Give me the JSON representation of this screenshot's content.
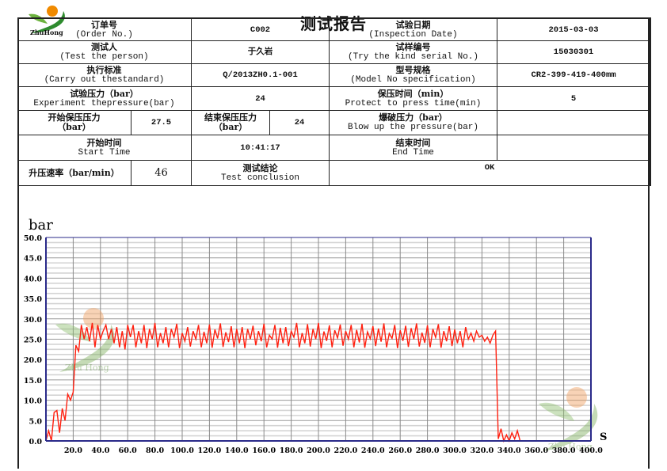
{
  "header": {
    "title": "测试报告",
    "logo_text": "ZhuHong",
    "watermark_text": "Zhu Hong"
  },
  "table": {
    "order_no": {
      "zh": "订单号",
      "en": "(Order No.)",
      "value": "C002"
    },
    "inspection_date": {
      "zh": "试验日期",
      "en": "(Inspection Date)",
      "value": "2015-03-03"
    },
    "test_person": {
      "zh": "测试人",
      "en": "(Test the person)",
      "value": "于久岩"
    },
    "serial_no": {
      "zh": "试样编号",
      "en": "(Try the kind serial No.)",
      "value": "15030301"
    },
    "standard": {
      "zh": "执行标准",
      "en": "(Carry out thestandard)",
      "value": "Q/2013ZH0.1-001"
    },
    "model": {
      "zh": "型号规格",
      "en": "(Model No specification)",
      "value": "CR2-399-419-400mm"
    },
    "test_pressure": {
      "zh": "试验压力（bar）",
      "en": "Experiment thepressure(bar)",
      "value": "24"
    },
    "hold_time": {
      "zh": "保压时间（min）",
      "en": "Protect to press time(min)",
      "value": "5"
    },
    "start_hold_pressure": {
      "zh": "开始保压压力",
      "en": "（bar）",
      "value": "27.5"
    },
    "end_hold_pressure": {
      "zh": "结束保压压力",
      "en": "（bar）",
      "value": "24"
    },
    "burst_pressure": {
      "zh": "爆破压力（bar）",
      "en": "Blow up the pressure(bar)",
      "value": ""
    },
    "start_time": {
      "zh": "开始时间",
      "en": "Start Time",
      "value": "10:41:17"
    },
    "end_time": {
      "zh": "结束时间",
      "en": "End Time",
      "value": ""
    },
    "rise_rate": {
      "zh": "升压速率（bar/min）",
      "value": "46"
    },
    "conclusion": {
      "zh": "测试结论",
      "en": "Test conclusion",
      "value": "OK"
    }
  },
  "chart_data": {
    "type": "line",
    "ylabel": "bar",
    "xlabel": "S",
    "xlim": [
      0,
      400
    ],
    "ylim": [
      0,
      50
    ],
    "grid": true,
    "line_color": "#ff2010",
    "axis_color": "#2a2a8a",
    "xticks": [
      "20.0",
      "40.0",
      "60.0",
      "80.0",
      "100.0",
      "120.0",
      "140.0",
      "160.0",
      "180.0",
      "200.0",
      "220.0",
      "240.0",
      "260.0",
      "280.0",
      "300.0",
      "320.0",
      "340.0",
      "360.0",
      "380.0",
      "400.0"
    ],
    "yticks": [
      "0.0",
      "5.0",
      "10.0",
      "15.0",
      "20.0",
      "25.0",
      "30.0",
      "35.0",
      "40.0",
      "45.0",
      "50.0"
    ],
    "points": [
      [
        0,
        0
      ],
      [
        2,
        2.5
      ],
      [
        4,
        0
      ],
      [
        6,
        7
      ],
      [
        8,
        7.5
      ],
      [
        10,
        2
      ],
      [
        12,
        8
      ],
      [
        14,
        5
      ],
      [
        16,
        11.5
      ],
      [
        18,
        10
      ],
      [
        20,
        12
      ],
      [
        22,
        23.5
      ],
      [
        24,
        22
      ],
      [
        26,
        28.5
      ],
      [
        28,
        25
      ],
      [
        30,
        28
      ],
      [
        32,
        24.5
      ],
      [
        34,
        29
      ],
      [
        36,
        23
      ],
      [
        38,
        28.5
      ],
      [
        40,
        25
      ],
      [
        42,
        27
      ],
      [
        44,
        28.5
      ],
      [
        46,
        25
      ],
      [
        48,
        27.5
      ],
      [
        50,
        24
      ],
      [
        52,
        28
      ],
      [
        54,
        23
      ],
      [
        56,
        27
      ],
      [
        58,
        22.5
      ],
      [
        60,
        28.5
      ],
      [
        62,
        25.5
      ],
      [
        64,
        28.5
      ],
      [
        66,
        23
      ],
      [
        68,
        27
      ],
      [
        70,
        24
      ],
      [
        72,
        28.5
      ],
      [
        74,
        22.8
      ],
      [
        76,
        27.5
      ],
      [
        78,
        25
      ],
      [
        80,
        29
      ],
      [
        82,
        23
      ],
      [
        84,
        26.5
      ],
      [
        86,
        24
      ],
      [
        88,
        28
      ],
      [
        90,
        23
      ],
      [
        92,
        27.5
      ],
      [
        94,
        25.5
      ],
      [
        96,
        28.8
      ],
      [
        98,
        22.8
      ],
      [
        100,
        26.5
      ],
      [
        102,
        24.5
      ],
      [
        104,
        28
      ],
      [
        106,
        23.2
      ],
      [
        108,
        27
      ],
      [
        110,
        25
      ],
      [
        112,
        28.5
      ],
      [
        114,
        23
      ],
      [
        116,
        26.8
      ],
      [
        118,
        24
      ],
      [
        120,
        28.6
      ],
      [
        122,
        22.9
      ],
      [
        124,
        27.4
      ],
      [
        126,
        25.2
      ],
      [
        128,
        28.9
      ],
      [
        130,
        23.1
      ],
      [
        132,
        26.7
      ],
      [
        134,
        24.3
      ],
      [
        136,
        28.2
      ],
      [
        138,
        23
      ],
      [
        140,
        27.5
      ],
      [
        142,
        24
      ],
      [
        144,
        28
      ],
      [
        146,
        22.8
      ],
      [
        148,
        27.5
      ],
      [
        150,
        25
      ],
      [
        152,
        28.3
      ],
      [
        154,
        23.5
      ],
      [
        156,
        27
      ],
      [
        158,
        24.5
      ],
      [
        160,
        28.8
      ],
      [
        162,
        23
      ],
      [
        164,
        26
      ],
      [
        166,
        25
      ],
      [
        168,
        28.5
      ],
      [
        170,
        22.9
      ],
      [
        172,
        27.8
      ],
      [
        174,
        24
      ],
      [
        176,
        28
      ],
      [
        178,
        23.3
      ],
      [
        180,
        27
      ],
      [
        182,
        25.5
      ],
      [
        184,
        29
      ],
      [
        186,
        23
      ],
      [
        188,
        26.5
      ],
      [
        190,
        24
      ],
      [
        192,
        28.7
      ],
      [
        194,
        23.2
      ],
      [
        196,
        27.5
      ],
      [
        198,
        25
      ],
      [
        200,
        29
      ],
      [
        202,
        22.8
      ],
      [
        204,
        26.9
      ],
      [
        206,
        24.6
      ],
      [
        208,
        28.4
      ],
      [
        210,
        23
      ],
      [
        212,
        27.2
      ],
      [
        214,
        25.3
      ],
      [
        216,
        28.6
      ],
      [
        218,
        23.4
      ],
      [
        220,
        27
      ],
      [
        222,
        25
      ],
      [
        224,
        28.5
      ],
      [
        226,
        23
      ],
      [
        228,
        27.3
      ],
      [
        230,
        24.2
      ],
      [
        232,
        28.8
      ],
      [
        234,
        22.9
      ],
      [
        236,
        26.8
      ],
      [
        238,
        25.1
      ],
      [
        240,
        28.2
      ],
      [
        242,
        23.3
      ],
      [
        244,
        27.6
      ],
      [
        246,
        24.4
      ],
      [
        248,
        28.9
      ],
      [
        250,
        23
      ],
      [
        252,
        26.4
      ],
      [
        254,
        25.2
      ],
      [
        256,
        28.5
      ],
      [
        258,
        22.8
      ],
      [
        260,
        27.2
      ],
      [
        262,
        24.6
      ],
      [
        264,
        28.3
      ],
      [
        266,
        23.1
      ],
      [
        268,
        27.7
      ],
      [
        270,
        25
      ],
      [
        272,
        28.9
      ],
      [
        274,
        23.2
      ],
      [
        276,
        26.6
      ],
      [
        278,
        24.1
      ],
      [
        280,
        28.4
      ],
      [
        282,
        23
      ],
      [
        284,
        27.5
      ],
      [
        286,
        25.4
      ],
      [
        288,
        28.7
      ],
      [
        290,
        22.9
      ],
      [
        292,
        27
      ],
      [
        294,
        24.5
      ],
      [
        296,
        28.2
      ],
      [
        298,
        23.3
      ],
      [
        300,
        27.4
      ],
      [
        302,
        24
      ],
      [
        304,
        27
      ],
      [
        306,
        23
      ],
      [
        308,
        28
      ],
      [
        310,
        25
      ],
      [
        312,
        26.5
      ],
      [
        314,
        24.5
      ],
      [
        316,
        27
      ],
      [
        318,
        25.5
      ],
      [
        320,
        26
      ],
      [
        322,
        24.5
      ],
      [
        324,
        25.5
      ],
      [
        326,
        24
      ],
      [
        328,
        26
      ],
      [
        330,
        27
      ],
      [
        332,
        0.5
      ],
      [
        334,
        3
      ],
      [
        336,
        0
      ],
      [
        338,
        1.5
      ],
      [
        340,
        0
      ],
      [
        342,
        2
      ],
      [
        344,
        0.5
      ],
      [
        346,
        2.5
      ],
      [
        348,
        0
      ]
    ]
  }
}
